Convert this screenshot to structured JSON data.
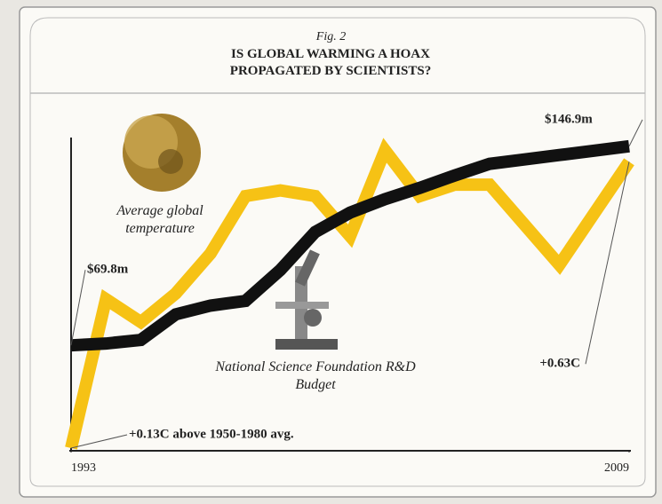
{
  "chart_data": {
    "type": "line",
    "figure_label": "Fig. 2",
    "title": "IS GLOBAL WARMING A HOAX PROPAGATED BY SCIENTISTS?",
    "x": [
      1993,
      1994,
      1995,
      1996,
      1997,
      1998,
      1999,
      2000,
      2001,
      2002,
      2003,
      2004,
      2005,
      2006,
      2007,
      2008,
      2009
    ],
    "xlim": [
      1993,
      2009
    ],
    "xticks": [
      1993,
      2009
    ],
    "ylim": [
      30,
      152
    ],
    "y2lim": [
      0.13,
      0.68
    ],
    "series": [
      {
        "name": "Average global temperature",
        "color": "#f6c215",
        "axis": "y2",
        "values": [
          0.13,
          0.39,
          0.35,
          0.4,
          0.47,
          0.57,
          0.58,
          0.57,
          0.5,
          0.65,
          0.57,
          0.59,
          0.59,
          0.52,
          0.45,
          0.54,
          0.63
        ],
        "value_labels": [
          "+0.13C above 1950-1980 avg.",
          null,
          null,
          null,
          null,
          null,
          null,
          null,
          null,
          null,
          null,
          null,
          null,
          null,
          null,
          null,
          "+0.63C"
        ]
      },
      {
        "name": "National Science Foundation R&D Budget",
        "color": "#111111",
        "values": [
          69.8,
          70.5,
          71.9,
          81.8,
          85.2,
          87.0,
          99.0,
          113.7,
          121.2,
          126.4,
          130.8,
          135.6,
          140.1,
          141.8,
          143.5,
          145.2,
          146.9
        ],
        "value_labels": [
          "$69.8m",
          null,
          null,
          null,
          null,
          null,
          null,
          null,
          null,
          null,
          null,
          null,
          null,
          null,
          null,
          null,
          "$146.9m"
        ]
      }
    ]
  }
}
